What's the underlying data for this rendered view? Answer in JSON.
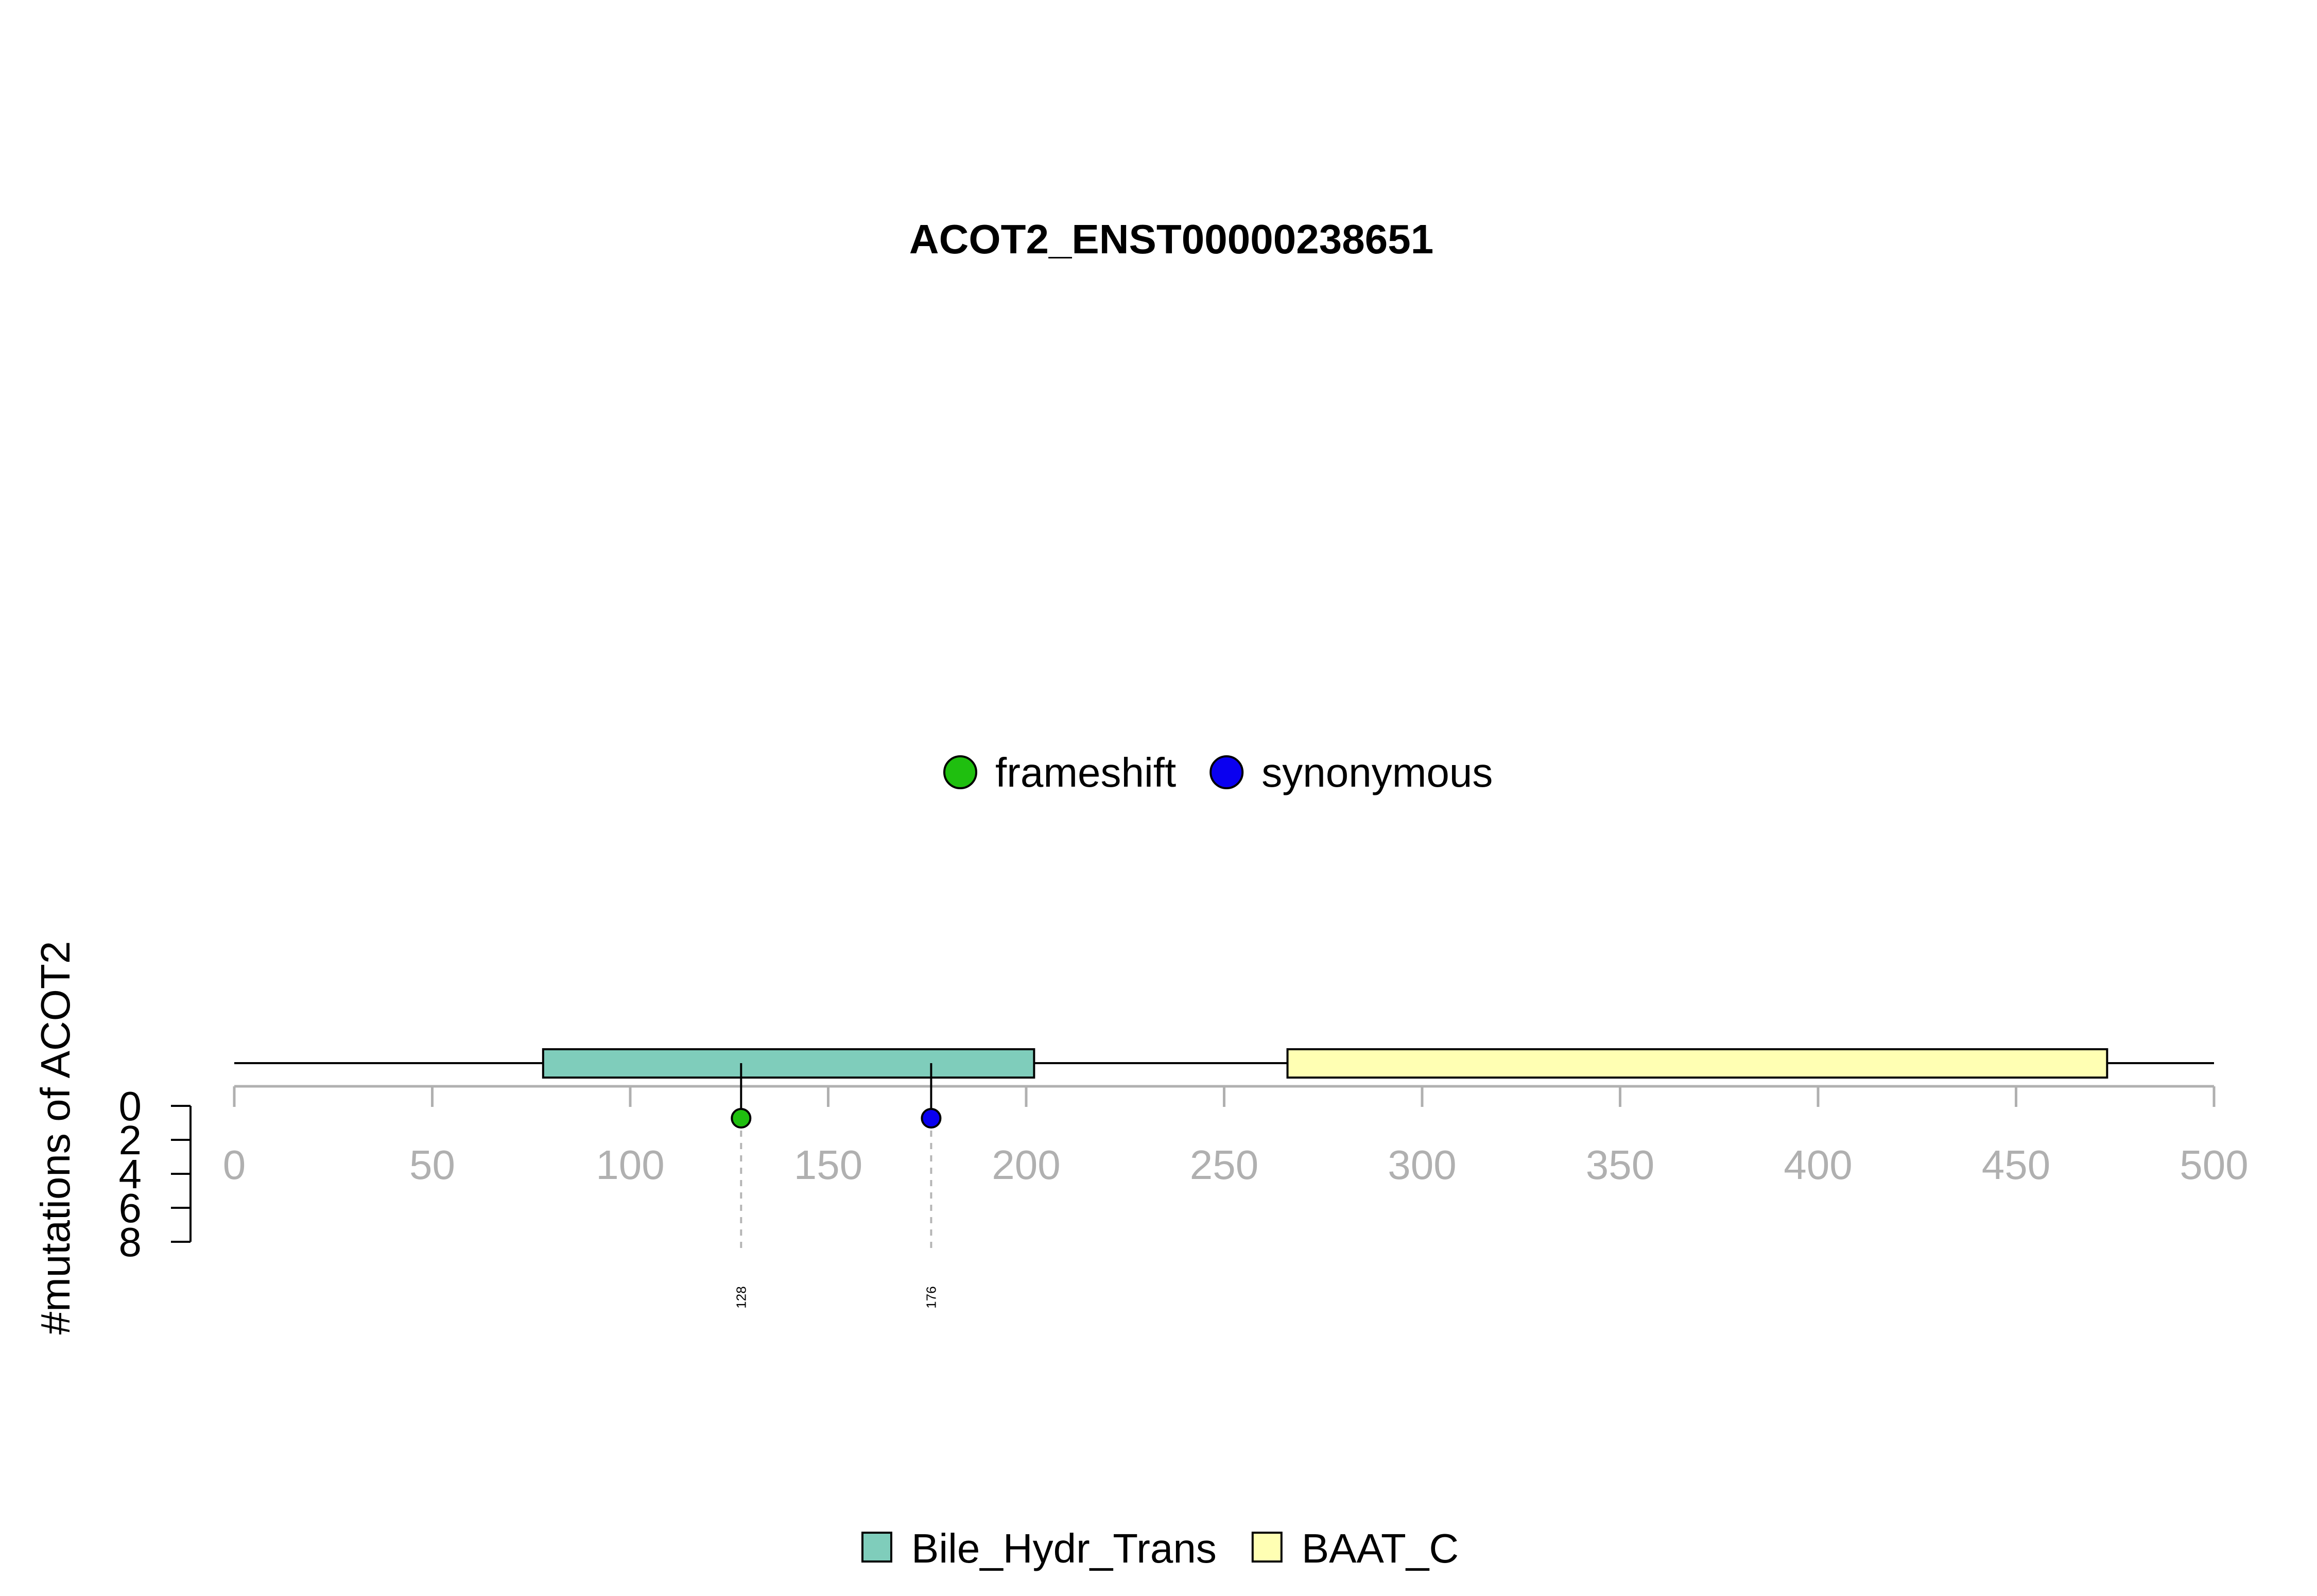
{
  "chart_data": {
    "type": "lollipop",
    "title": "ACOT2_ENST00000238651",
    "ylabel": "#mutations of ACOT2",
    "xlim": [
      0,
      500
    ],
    "xticks": [
      0,
      50,
      100,
      150,
      200,
      250,
      300,
      350,
      400,
      450,
      500
    ],
    "ylim": [
      0,
      8
    ],
    "yticks": [
      0,
      2,
      4,
      6,
      8
    ],
    "protein_length": 500,
    "domains": [
      {
        "name": "Bile_Hydr_Trans",
        "start": 78,
        "end": 202,
        "color": "#7fcdbb"
      },
      {
        "name": "BAAT_C",
        "start": 266,
        "end": 473,
        "color": "#ffffb3"
      }
    ],
    "mutation_types": [
      {
        "name": "frameshift",
        "color": "#1fbf0f"
      },
      {
        "name": "synonymous",
        "color": "#0a00f0"
      }
    ],
    "mutations": [
      {
        "position": 128,
        "label": "128",
        "count": 1,
        "type": "frameshift"
      },
      {
        "position": 176,
        "label": "176",
        "count": 1,
        "type": "synonymous"
      }
    ]
  }
}
